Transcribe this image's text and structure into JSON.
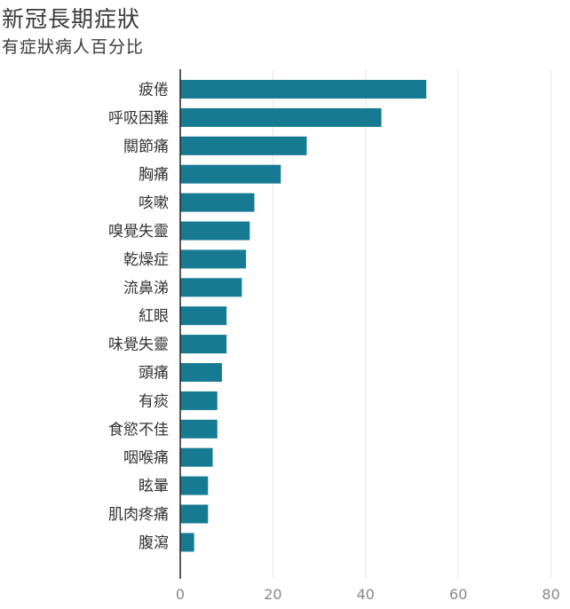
{
  "header": {
    "title": "新冠長期症狀",
    "subtitle": "有症狀病人百分比"
  },
  "colors": {
    "bar": "#167a92",
    "gridline": "#e6e6ee",
    "axis": "#222222",
    "tick_text": "#888888",
    "label_text": "#333333"
  },
  "chart_data": {
    "type": "bar",
    "orientation": "horizontal",
    "title": "新冠長期症狀",
    "subtitle": "有症狀病人百分比",
    "categories": [
      "疲倦",
      "呼吸困難",
      "關節痛",
      "胸痛",
      "咳嗽",
      "嗅覺失靈",
      "乾燥症",
      "流鼻涕",
      "紅眼",
      "味覺失靈",
      "頭痛",
      "有痰",
      "食慾不佳",
      "咽喉痛",
      "眩暈",
      "肌肉疼痛",
      "腹瀉"
    ],
    "values": [
      53.1,
      43.4,
      27.3,
      21.7,
      16.0,
      15.0,
      14.2,
      13.3,
      10.0,
      10.0,
      9.0,
      8.0,
      8.0,
      7.0,
      6.0,
      6.0,
      3.0
    ],
    "xlim": [
      0,
      80
    ],
    "xticks": [
      0,
      20,
      40,
      60,
      80
    ],
    "grid": "vertical"
  }
}
